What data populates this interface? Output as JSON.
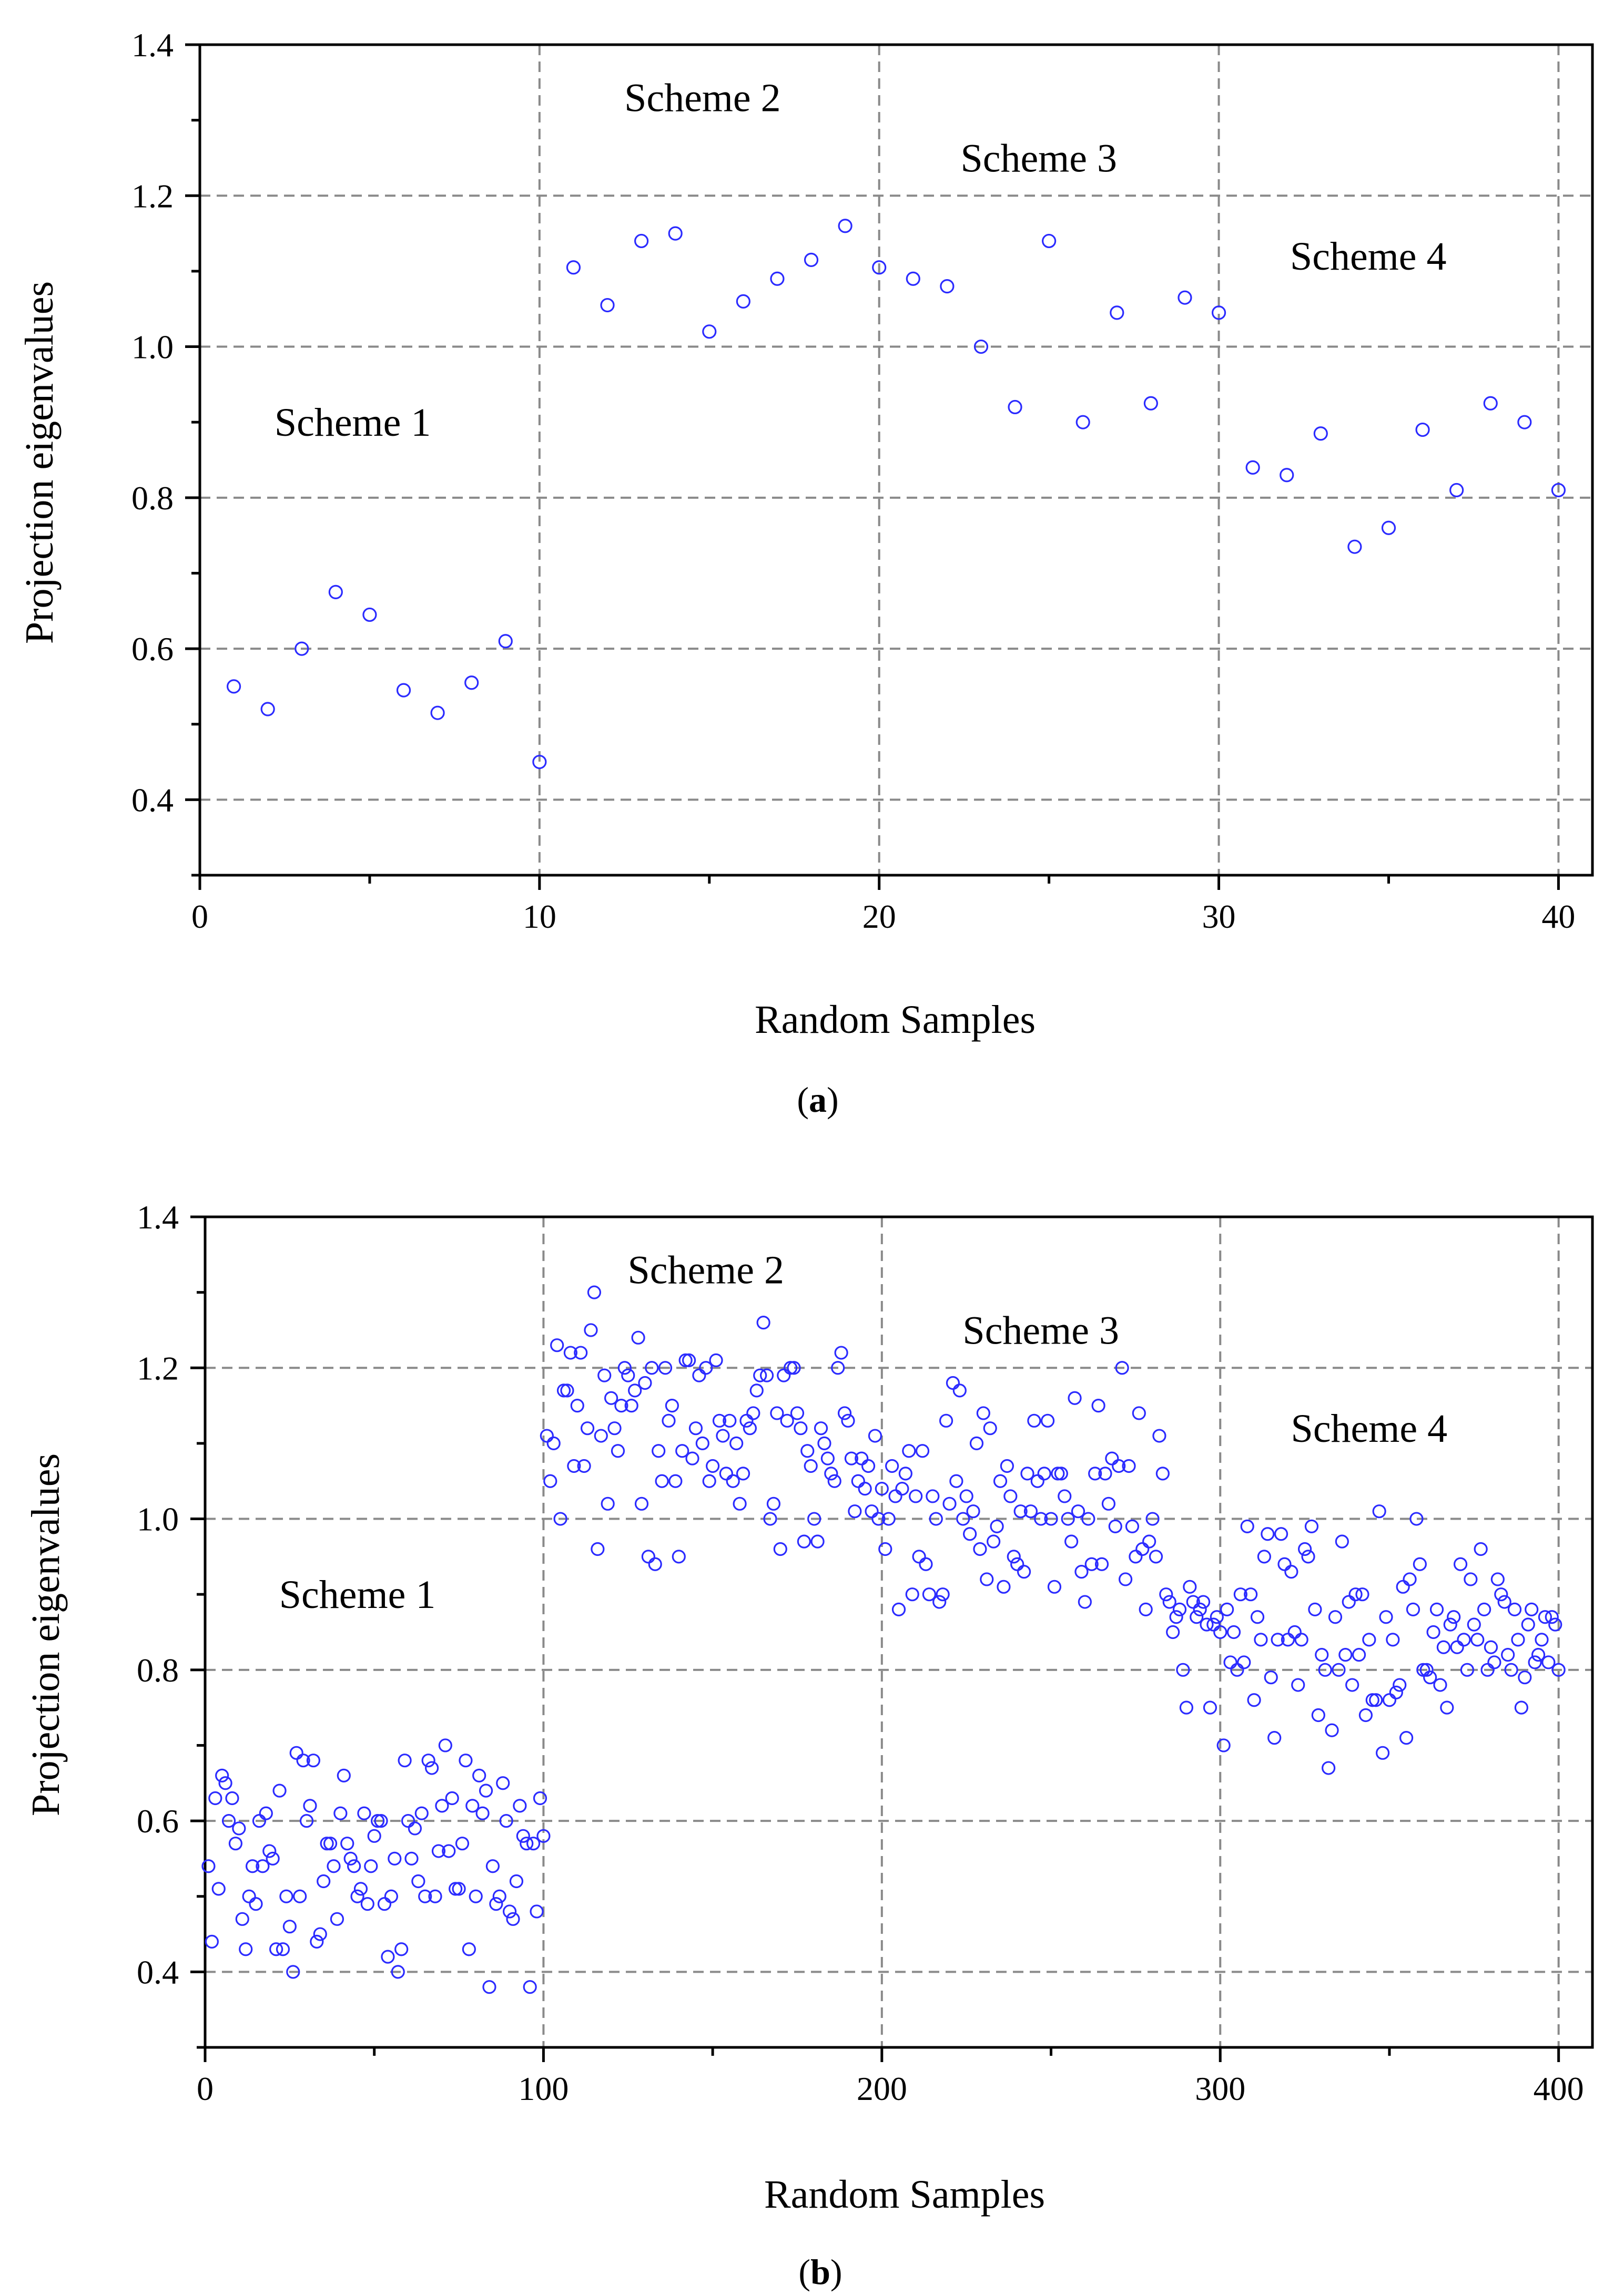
{
  "colors": {
    "marker": "#2b2bff",
    "grid": "#8a8a8a",
    "axis": "#000000"
  },
  "chart_data": [
    {
      "panel": "a",
      "caption_open": "(",
      "caption_letter": "a",
      "caption_close": ")",
      "type": "scatter",
      "title": "",
      "xlabel": "Random Samples",
      "ylabel": "Projection eigenvalues",
      "xlim": [
        0,
        41
      ],
      "ylim": [
        0.3,
        1.4
      ],
      "xticks": [
        "0",
        "10",
        "20",
        "30",
        "40"
      ],
      "yticks": [
        "0.4",
        "0.6",
        "0.8",
        "1.0",
        "1.2",
        "1.4"
      ],
      "xtick_values": [
        0,
        10,
        20,
        30,
        40
      ],
      "ytick_values": [
        0.4,
        0.6,
        0.8,
        1.0,
        1.2,
        1.4
      ],
      "grid_x": [
        10,
        20,
        30,
        40
      ],
      "grid_y": [
        0.4,
        0.6,
        0.8,
        1.0,
        1.2
      ],
      "annotations": [
        {
          "text": "Scheme 1",
          "x": 4.5,
          "y": 0.9
        },
        {
          "text": "Scheme 2",
          "x": 14.8,
          "y": 1.33
        },
        {
          "text": "Scheme 3",
          "x": 24.7,
          "y": 1.25
        },
        {
          "text": "Scheme 4",
          "x": 34.4,
          "y": 1.12
        }
      ],
      "x": [
        1,
        2,
        3,
        4,
        5,
        6,
        7,
        8,
        9,
        10,
        11,
        12,
        13,
        14,
        15,
        16,
        17,
        18,
        19,
        20,
        21,
        22,
        23,
        24,
        25,
        26,
        27,
        28,
        29,
        30,
        31,
        32,
        33,
        34,
        35,
        36,
        37,
        38,
        39,
        40
      ],
      "y": [
        0.55,
        0.52,
        0.6,
        0.675,
        0.645,
        0.545,
        0.515,
        0.555,
        0.61,
        0.45,
        1.105,
        1.055,
        1.14,
        1.15,
        1.02,
        1.06,
        1.09,
        1.115,
        1.16,
        1.105,
        1.09,
        1.08,
        1.0,
        0.92,
        1.14,
        0.9,
        1.045,
        0.925,
        1.065,
        1.045,
        0.84,
        0.83,
        0.885,
        0.735,
        0.76,
        0.89,
        0.81,
        0.925,
        0.9,
        0.81
      ]
    },
    {
      "panel": "b",
      "caption_open": "(",
      "caption_letter": "b",
      "caption_close": ")",
      "type": "scatter",
      "title": "",
      "xlabel": "Random Samples",
      "ylabel": "Projection eigenvalues",
      "xlim": [
        0,
        410
      ],
      "ylim": [
        0.3,
        1.4
      ],
      "xticks": [
        "0",
        "100",
        "200",
        "300",
        "400"
      ],
      "yticks": [
        "0.4",
        "0.6",
        "0.8",
        "1.0",
        "1.2",
        "1.4"
      ],
      "xtick_values": [
        0,
        100,
        200,
        300,
        400
      ],
      "ytick_values": [
        0.4,
        0.6,
        0.8,
        1.0,
        1.2,
        1.4
      ],
      "grid_x": [
        100,
        200,
        300,
        400
      ],
      "grid_y": [
        0.4,
        0.6,
        0.8,
        1.0,
        1.2
      ],
      "annotations": [
        {
          "text": "Scheme 1",
          "x": 45,
          "y": 0.9
        },
        {
          "text": "Scheme 2",
          "x": 148,
          "y": 1.33
        },
        {
          "text": "Scheme 3",
          "x": 247,
          "y": 1.25
        },
        {
          "text": "Scheme 4",
          "x": 344,
          "y": 1.12
        }
      ],
      "series": [
        {
          "name": "Scheme 1",
          "x_range": [
            1,
            100
          ],
          "y": [
            0.54,
            0.44,
            0.63,
            0.51,
            0.66,
            0.65,
            0.6,
            0.63,
            0.57,
            0.59,
            0.47,
            0.43,
            0.5,
            0.54,
            0.49,
            0.6,
            0.54,
            0.61,
            0.56,
            0.55,
            0.43,
            0.64,
            0.43,
            0.5,
            0.46,
            0.4,
            0.69,
            0.5,
            0.68,
            0.6,
            0.62,
            0.68,
            0.44,
            0.45,
            0.52,
            0.57,
            0.57,
            0.54,
            0.47,
            0.61,
            0.66,
            0.57,
            0.55,
            0.54,
            0.5,
            0.51,
            0.61,
            0.49,
            0.54,
            0.58,
            0.6,
            0.6,
            0.49,
            0.42,
            0.5,
            0.55,
            0.4,
            0.43,
            0.68,
            0.6,
            0.55,
            0.59,
            0.52,
            0.61,
            0.5,
            0.68,
            0.67,
            0.5,
            0.56,
            0.62,
            0.7,
            0.56,
            0.63,
            0.51,
            0.51,
            0.57,
            0.68,
            0.43,
            0.62,
            0.5,
            0.66,
            0.61,
            0.64,
            0.38,
            0.54,
            0.49,
            0.5,
            0.65,
            0.6,
            0.48,
            0.47,
            0.52,
            0.62,
            0.58,
            0.57,
            0.38,
            0.57,
            0.48,
            0.63,
            0.58
          ]
        },
        {
          "name": "Scheme 2",
          "x_range": [
            101,
            200
          ],
          "y": [
            1.11,
            1.05,
            1.1,
            1.23,
            1.0,
            1.17,
            1.17,
            1.22,
            1.07,
            1.15,
            1.22,
            1.07,
            1.12,
            1.25,
            1.3,
            0.96,
            1.11,
            1.19,
            1.02,
            1.16,
            1.12,
            1.09,
            1.15,
            1.2,
            1.19,
            1.15,
            1.17,
            1.24,
            1.02,
            1.18,
            0.95,
            1.2,
            0.94,
            1.09,
            1.05,
            1.2,
            1.13,
            1.15,
            1.05,
            0.95,
            1.09,
            1.21,
            1.21,
            1.08,
            1.12,
            1.19,
            1.1,
            1.2,
            1.05,
            1.07,
            1.21,
            1.13,
            1.11,
            1.06,
            1.13,
            1.05,
            1.1,
            1.02,
            1.06,
            1.13,
            1.12,
            1.14,
            1.17,
            1.19,
            1.26,
            1.19,
            1.0,
            1.02,
            1.14,
            0.96,
            1.19,
            1.13,
            1.2,
            1.2,
            1.14,
            1.12,
            0.97,
            1.09,
            1.07,
            1.0,
            0.97,
            1.12,
            1.1,
            1.08,
            1.06,
            1.05,
            1.2,
            1.22,
            1.14,
            1.13,
            1.08,
            1.01,
            1.05,
            1.08,
            1.04,
            1.07,
            1.01,
            1.11,
            1.0,
            1.04
          ]
        },
        {
          "name": "Scheme 3",
          "x_range": [
            201,
            300
          ],
          "y": [
            0.96,
            1.0,
            1.07,
            1.03,
            0.88,
            1.04,
            1.06,
            1.09,
            0.9,
            1.03,
            0.95,
            1.09,
            0.94,
            0.9,
            1.03,
            1.0,
            0.89,
            0.9,
            1.13,
            1.02,
            1.18,
            1.05,
            1.17,
            1.0,
            1.03,
            0.98,
            1.01,
            1.1,
            0.96,
            1.14,
            0.92,
            1.12,
            0.97,
            0.99,
            1.05,
            0.91,
            1.07,
            1.03,
            0.95,
            0.94,
            1.01,
            0.93,
            1.06,
            1.01,
            1.13,
            1.05,
            1.0,
            1.06,
            1.13,
            1.0,
            0.91,
            1.06,
            1.06,
            1.03,
            1.0,
            0.97,
            1.16,
            1.01,
            0.93,
            0.89,
            1.0,
            0.94,
            1.06,
            1.15,
            0.94,
            1.06,
            1.02,
            1.08,
            0.99,
            1.07,
            1.2,
            0.92,
            1.07,
            0.99,
            0.95,
            1.14,
            0.96,
            0.88,
            0.97,
            1.0,
            0.95,
            1.11,
            1.06,
            0.9,
            0.89,
            0.85,
            0.87,
            0.88,
            0.8,
            0.75,
            0.91,
            0.89,
            0.87,
            0.88,
            0.89,
            0.86,
            0.75,
            0.86,
            0.87,
            0.85
          ]
        },
        {
          "name": "Scheme 4",
          "x_range": [
            301,
            400
          ],
          "y": [
            0.7,
            0.88,
            0.81,
            0.85,
            0.8,
            0.9,
            0.81,
            0.99,
            0.9,
            0.76,
            0.87,
            0.84,
            0.95,
            0.98,
            0.79,
            0.71,
            0.84,
            0.98,
            0.94,
            0.84,
            0.93,
            0.85,
            0.78,
            0.84,
            0.96,
            0.95,
            0.99,
            0.88,
            0.74,
            0.82,
            0.8,
            0.67,
            0.72,
            0.87,
            0.8,
            0.97,
            0.82,
            0.89,
            0.78,
            0.9,
            0.82,
            0.9,
            0.74,
            0.84,
            0.76,
            0.76,
            1.01,
            0.69,
            0.87,
            0.76,
            0.84,
            0.77,
            0.78,
            0.91,
            0.71,
            0.92,
            0.88,
            1.0,
            0.94,
            0.8,
            0.8,
            0.79,
            0.85,
            0.88,
            0.78,
            0.83,
            0.75,
            0.86,
            0.87,
            0.83,
            0.94,
            0.84,
            0.8,
            0.92,
            0.86,
            0.84,
            0.96,
            0.88,
            0.8,
            0.83,
            0.81,
            0.92,
            0.9,
            0.89,
            0.82,
            0.8,
            0.88,
            0.84,
            0.75,
            0.79,
            0.86,
            0.88,
            0.81,
            0.82,
            0.84,
            0.87,
            0.81,
            0.87,
            0.86,
            0.8
          ]
        }
      ]
    }
  ]
}
